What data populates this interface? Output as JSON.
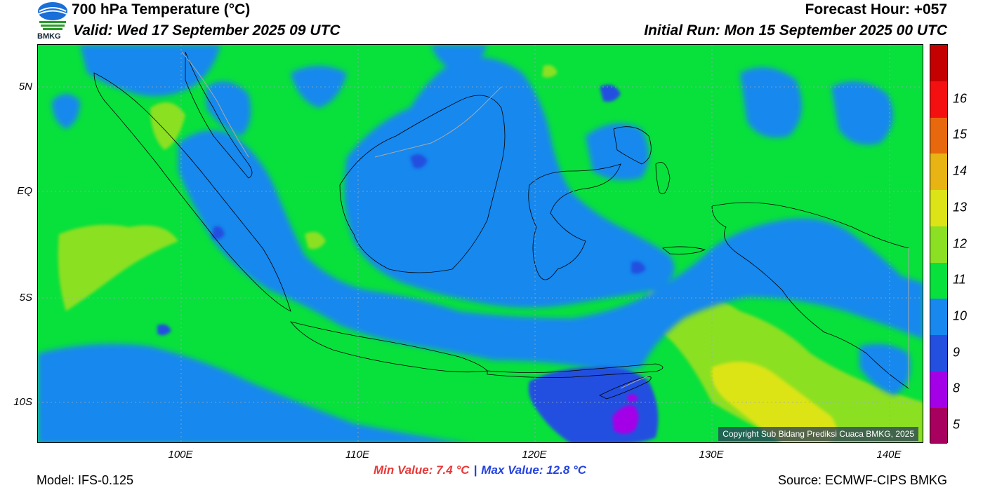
{
  "header": {
    "title": "700 hPa Temperature (°C)",
    "valid": "Valid: Wed 17 September 2025 09 UTC",
    "forecast_hour": "Forecast Hour: +057",
    "initial_run": "Initial Run: Mon 15 September 2025 00 UTC",
    "logo_text": "BMKG"
  },
  "map": {
    "lat_labels": [
      "5N",
      "EQ",
      "5S",
      "10S"
    ],
    "lon_labels": [
      "100E",
      "110E",
      "120E",
      "130E",
      "140E"
    ],
    "copyright": "Copyright Sub Bidang Prediksi Cuaca BMKG, 2025"
  },
  "colorbar": {
    "labels": [
      "5",
      "8",
      "9",
      "10",
      "11",
      "12",
      "13",
      "14",
      "15",
      "16"
    ],
    "colors": [
      "#a8005e",
      "#a400e8",
      "#2450e0",
      "#1888ee",
      "#08e03c",
      "#8ce024",
      "#dce418",
      "#e8b414",
      "#e8680e",
      "#f41010",
      "#c40000"
    ]
  },
  "stats": {
    "min": "Min Value: 7.4 °C",
    "separator": "|",
    "max": "Max Value: 12.8 °C"
  },
  "footer": {
    "model": "Model: IFS-0.125",
    "source": "Source: ECMWF-CIPS BMKG"
  }
}
